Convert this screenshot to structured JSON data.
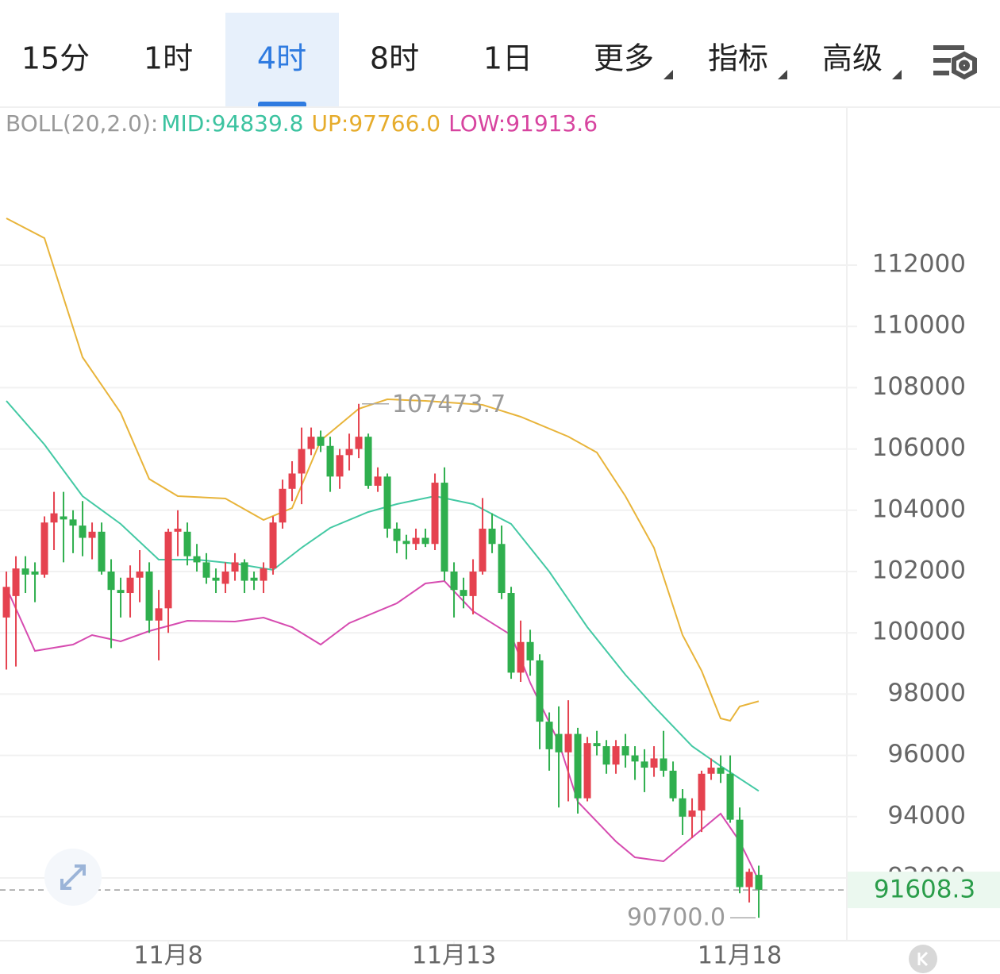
{
  "tabs": [
    "15分",
    "1时",
    "4时",
    "8时",
    "1日",
    "更多",
    "指标",
    "高级"
  ],
  "selected_tab": 2,
  "chart_data": {
    "type": "candlestick",
    "indicator_header": "BOLL(20,2.0):",
    "indicator_items": [
      {
        "label": "MID:94839.8",
        "color": "#3cc3a0"
      },
      {
        "label": "UP:97766.0",
        "color": "#e6ac2c"
      },
      {
        "label": "LOW:91913.6",
        "color": "#d7449f"
      }
    ],
    "up_color": "#e5424f",
    "down_color": "#2faf4e",
    "open": [
      100500,
      101200,
      102100,
      102000,
      101900,
      103600,
      103800,
      103700,
      103500,
      103100,
      103300,
      102000,
      101400,
      101300,
      101800,
      102000,
      100400,
      100800,
      103300,
      103300,
      102500,
      102300,
      101800,
      101600,
      102000,
      102300,
      101800,
      101700,
      102100,
      103600,
      104700,
      105200,
      106000,
      106400,
      106100,
      105100,
      105800,
      106000,
      106400,
      104800,
      105100,
      103400,
      103000,
      102900,
      103100,
      102900,
      104900,
      102000,
      101400,
      101200,
      102000,
      103400,
      102900,
      101300,
      98700,
      99700,
      99100,
      97100,
      96700,
      96100,
      96700,
      94600,
      96400,
      96300,
      95700,
      96300,
      96000,
      95800,
      95600,
      95900,
      95500,
      94600,
      94000,
      94200,
      95400,
      95600,
      95400,
      93900,
      91700,
      92100
    ],
    "high": [
      102000,
      102500,
      102500,
      102300,
      103800,
      104600,
      104600,
      104000,
      104300,
      103600,
      103600,
      102400,
      101800,
      102200,
      102700,
      102300,
      101400,
      103400,
      104000,
      103600,
      102900,
      102600,
      102100,
      102300,
      102600,
      102400,
      102000,
      102300,
      103800,
      105000,
      105600,
      106700,
      106700,
      106600,
      106400,
      106000,
      106500,
      107473.7,
      106500,
      105400,
      105200,
      103600,
      103200,
      103400,
      103400,
      105200,
      105400,
      102300,
      101800,
      102400,
      104400,
      103900,
      103500,
      101500,
      100400,
      100100,
      99300,
      97400,
      97600,
      97800,
      96900,
      96600,
      96800,
      96500,
      96500,
      96700,
      96300,
      96200,
      96300,
      96800,
      95800,
      94900,
      94600,
      95500,
      95900,
      96000,
      96000,
      94300,
      92300,
      92400
    ],
    "low": [
      98800,
      98900,
      101300,
      101000,
      101800,
      102700,
      102300,
      102600,
      102500,
      102400,
      101900,
      99500,
      100500,
      100500,
      101000,
      100000,
      99100,
      100000,
      102500,
      102200,
      102000,
      101600,
      101300,
      101300,
      101700,
      101300,
      101400,
      101300,
      101900,
      103400,
      104300,
      104200,
      105800,
      105900,
      104600,
      104700,
      105300,
      105700,
      104700,
      104600,
      103100,
      102600,
      102400,
      102700,
      102800,
      102700,
      101700,
      100500,
      100800,
      100600,
      101900,
      102600,
      101100,
      98500,
      98400,
      98600,
      96200,
      95500,
      94300,
      94500,
      94100,
      94500,
      96000,
      95400,
      95400,
      95600,
      95200,
      94800,
      95300,
      95300,
      94500,
      93400,
      93300,
      93500,
      95200,
      95100,
      93800,
      91500,
      91200,
      90700
    ],
    "close": [
      101500,
      102100,
      101900,
      101900,
      103600,
      103900,
      103700,
      103500,
      103100,
      103300,
      102000,
      101400,
      101300,
      101800,
      102000,
      100400,
      100800,
      103300,
      103400,
      102500,
      102300,
      101800,
      101700,
      102000,
      102300,
      101700,
      101700,
      102100,
      103600,
      104700,
      105200,
      106000,
      106400,
      106100,
      105100,
      105800,
      106000,
      106400,
      104800,
      105100,
      103400,
      103000,
      102900,
      103100,
      102900,
      104900,
      102000,
      101400,
      101200,
      102000,
      103400,
      102900,
      101300,
      98700,
      99700,
      99100,
      97100,
      96200,
      96100,
      96700,
      94600,
      96400,
      96300,
      95700,
      96300,
      96000,
      95800,
      95600,
      95900,
      95500,
      94600,
      94000,
      94200,
      95400,
      95600,
      95400,
      93900,
      91700,
      92200,
      91608.3
    ],
    "overlays": [
      {
        "color": "#e8b43a",
        "x": [
          0,
          4,
          8,
          12,
          15,
          18,
          23,
          27,
          30,
          33,
          37,
          40,
          44,
          50,
          54,
          59,
          62,
          65,
          68,
          71,
          73,
          75,
          76,
          77,
          79
        ],
        "values": [
          113528,
          112881,
          108995,
          107181,
          105021,
          104461,
          104383,
          103684,
          104073,
          106275,
          107311,
          107622,
          107570,
          107440,
          107052,
          106404,
          105886,
          104461,
          102777,
          99927,
          98762,
          97207,
          97130,
          97596,
          97766.0
        ]
      },
      {
        "color": "#44c9a4",
        "x": [
          0,
          4,
          8,
          12,
          16,
          20,
          24,
          28,
          31,
          34,
          38,
          41,
          45,
          49,
          53,
          57,
          61,
          65,
          68,
          72,
          75,
          79
        ],
        "values": [
          107570,
          106145,
          104461,
          103554,
          102389,
          102389,
          102259,
          102052,
          102777,
          103425,
          103943,
          104202,
          104461,
          104202,
          103554,
          102000,
          100187,
          98632,
          97596,
          96301,
          95653,
          94839.8
        ]
      },
      {
        "color": "#d64bb0",
        "x": [
          0,
          3,
          7,
          9,
          12,
          15,
          19,
          24,
          27,
          30,
          33,
          36,
          41,
          44,
          46,
          49,
          53,
          55,
          58,
          60,
          64,
          66,
          69,
          72,
          75,
          77,
          79
        ],
        "values": [
          101482,
          99409,
          99617,
          99927,
          99720,
          100057,
          100394,
          100368,
          100497,
          100187,
          99617,
          100316,
          100964,
          101611,
          101689,
          100705,
          99927,
          98373,
          96430,
          94487,
          93192,
          92674,
          92544,
          93321,
          94098,
          93192,
          91913.6
        ]
      }
    ],
    "xlim": [
      -0.67,
      88.08
    ],
    "xticks": [
      {
        "value": 17,
        "label": "11月8"
      },
      {
        "value": 47,
        "label": "11月13"
      },
      {
        "value": 77,
        "label": "11月18"
      }
    ],
    "ylim": [
      89953,
      115990
    ],
    "yticks": [
      92000,
      94000,
      96000,
      98000,
      100000,
      102000,
      104000,
      106000,
      108000,
      110000,
      112000
    ],
    "grid": "y",
    "high_label": "107473.7",
    "low_label": "90700.0",
    "last_price": 91608.3,
    "last_price_label": "91608.3"
  }
}
